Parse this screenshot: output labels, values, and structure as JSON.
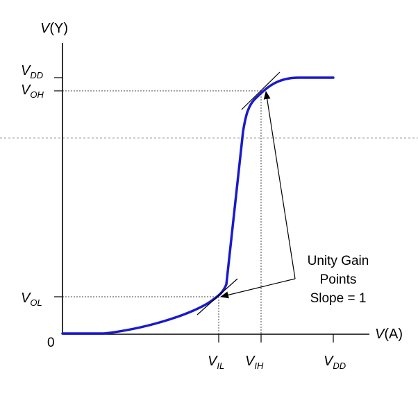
{
  "diagram": {
    "y_axis": {
      "symbol": "V",
      "arg": "(Y)"
    },
    "x_axis": {
      "symbol": "V",
      "arg": "(A)"
    },
    "origin_label": "0",
    "y_ticks": {
      "vdd": {
        "main": "V",
        "sub": "DD"
      },
      "voh": {
        "main": "V",
        "sub": "OH"
      },
      "vol": {
        "main": "V",
        "sub": "OL"
      }
    },
    "x_ticks": {
      "vil": {
        "main": "V",
        "sub": "IL"
      },
      "vih": {
        "main": "V",
        "sub": "IH"
      },
      "vdd": {
        "main": "V",
        "sub": "DD"
      }
    },
    "annotation": {
      "line1": "Unity Gain",
      "line2": "Points",
      "line3": "Slope = 1"
    },
    "colors": {
      "curve": "#1a1acc",
      "axes": "#000000",
      "guides": "#444444",
      "divider": "#9a9a9a"
    }
  }
}
